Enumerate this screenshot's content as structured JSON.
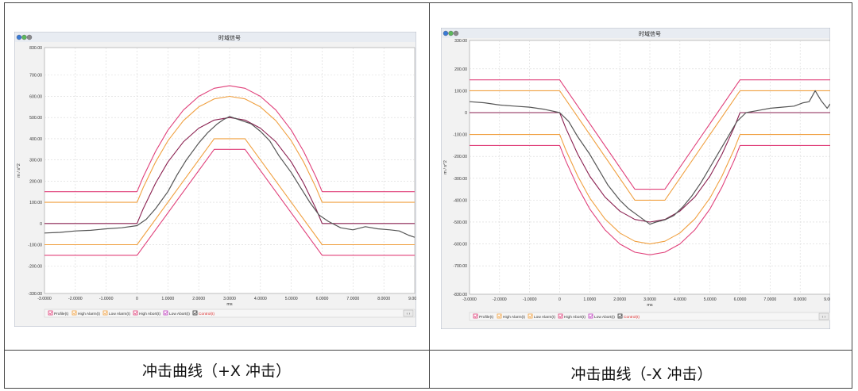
{
  "captions": {
    "left": "冲击曲线（+X 冲击）",
    "right": "冲击曲线（-X 冲击）"
  },
  "legend_items": [
    "Profile(t)",
    "High Alarm(t)",
    "Low Alarm(t)",
    "High Abort(t)",
    "Low Abort(t)",
    "Control(t)"
  ],
  "legend_colors": [
    "#e0407a",
    "#f0a040",
    "#f0a040",
    "#e0407a",
    "#c040c0",
    "#333333"
  ],
  "scroll_label": "‹ ›",
  "chart_data": [
    {
      "type": "line",
      "title": "时域信号",
      "xlabel": "ms",
      "ylabel": "m / s^2",
      "xlim": [
        -3,
        9
      ],
      "ylim": [
        -330,
        830
      ],
      "xticks": [
        "-3.0000",
        "-2.0000",
        "-1.0000",
        "0",
        "1.0000",
        "2.0000",
        "3.0000",
        "4.0000",
        "5.0000",
        "6.0000",
        "7.0000",
        "8.0000",
        "9.0000"
      ],
      "yticks": [
        "830.00",
        "700.00",
        "600.00",
        "500.00",
        "400.00",
        "300.00",
        "200.00",
        "100.00",
        "0",
        "-100.00",
        "-200.00",
        "-330.00"
      ],
      "ytick_values": [
        830,
        700,
        600,
        500,
        400,
        300,
        200,
        100,
        0,
        -100,
        -200,
        -330
      ],
      "grid": true,
      "legend_placement": "bottom",
      "series": [
        {
          "role": "high-abort",
          "color": "#e0407a",
          "x": [
            -3,
            0,
            0.2,
            0.6,
            1.0,
            1.5,
            2.0,
            2.5,
            3.0,
            3.5,
            4.0,
            4.5,
            5.0,
            5.4,
            5.8,
            6.0,
            9
          ],
          "y": [
            150,
            150,
            220,
            340,
            440,
            535,
            600,
            638,
            650,
            638,
            600,
            535,
            440,
            340,
            220,
            150,
            150
          ]
        },
        {
          "role": "high-alarm",
          "color": "#f0a040",
          "x": [
            -3,
            0,
            0.2,
            0.6,
            1.0,
            1.5,
            2.0,
            2.5,
            3.0,
            3.5,
            4.0,
            4.5,
            5.0,
            5.4,
            5.8,
            6.0,
            9
          ],
          "y": [
            100,
            100,
            170,
            290,
            390,
            485,
            550,
            588,
            600,
            588,
            550,
            485,
            390,
            290,
            170,
            100,
            100
          ]
        },
        {
          "role": "low-alarm",
          "color": "#f0a040",
          "x": [
            -3,
            0,
            2.5,
            3.5,
            6.0,
            9
          ],
          "y": [
            -100,
            -100,
            400,
            400,
            -100,
            -100
          ]
        },
        {
          "role": "low-abort",
          "color": "#e0407a",
          "x": [
            -3,
            0,
            2.5,
            3.5,
            6.0,
            9
          ],
          "y": [
            -150,
            -150,
            350,
            350,
            -150,
            -150
          ]
        },
        {
          "role": "profile",
          "color": "#8a2050",
          "x": [
            -3,
            0,
            0.2,
            0.6,
            1.0,
            1.5,
            2.0,
            2.5,
            3.0,
            3.5,
            4.0,
            4.5,
            5.0,
            5.4,
            5.8,
            6.0,
            9
          ],
          "y": [
            0,
            0,
            70,
            190,
            290,
            385,
            450,
            488,
            500,
            488,
            450,
            385,
            290,
            190,
            70,
            0,
            0
          ]
        },
        {
          "role": "control",
          "color": "#555555",
          "x": [
            -3,
            -2.5,
            -2,
            -1.5,
            -1,
            -0.5,
            0,
            0.3,
            0.6,
            1.0,
            1.3,
            1.6,
            2.0,
            2.3,
            2.6,
            2.8,
            3.0,
            3.2,
            3.4,
            3.7,
            4.0,
            4.3,
            4.6,
            5.0,
            5.3,
            5.6,
            5.9,
            6.2,
            6.6,
            7.0,
            7.4,
            7.8,
            8.2,
            8.5,
            8.8,
            9
          ],
          "y": [
            -45,
            -42,
            -35,
            -32,
            -25,
            -20,
            -10,
            20,
            70,
            150,
            230,
            300,
            380,
            430,
            470,
            490,
            505,
            495,
            485,
            470,
            435,
            390,
            320,
            240,
            170,
            100,
            40,
            10,
            -20,
            -30,
            -15,
            -25,
            -30,
            -35,
            -55,
            -65
          ]
        }
      ]
    },
    {
      "type": "line",
      "title": "时域信号",
      "xlabel": "ms",
      "ylabel": "m / s^2",
      "xlim": [
        -3,
        9
      ],
      "ylim": [
        -830,
        330
      ],
      "xticks": [
        "-3.0000",
        "-2.0000",
        "-1.0000",
        "0",
        "1.0000",
        "2.0000",
        "3.0000",
        "4.0000",
        "5.0000",
        "6.0000",
        "7.0000",
        "8.0000",
        "9.0000"
      ],
      "yticks": [
        "330.00",
        "200.00",
        "100.00",
        "0",
        "-100.00",
        "-200.00",
        "-300.00",
        "-400.00",
        "-500.00",
        "-600.00",
        "-700.00",
        "-830.00"
      ],
      "ytick_values": [
        330,
        200,
        100,
        0,
        -100,
        -200,
        -300,
        -400,
        -500,
        -600,
        -700,
        -830
      ],
      "grid": true,
      "legend_placement": "bottom",
      "series": [
        {
          "role": "high-abort",
          "color": "#e0407a",
          "x": [
            -3,
            0,
            2.5,
            3.5,
            6.0,
            9
          ],
          "y": [
            150,
            150,
            -350,
            -350,
            150,
            150
          ]
        },
        {
          "role": "high-alarm",
          "color": "#f0a040",
          "x": [
            -3,
            0,
            2.5,
            3.5,
            6.0,
            9
          ],
          "y": [
            100,
            100,
            -400,
            -400,
            100,
            100
          ]
        },
        {
          "role": "low-alarm",
          "color": "#f0a040",
          "x": [
            -3,
            0,
            0.2,
            0.6,
            1.0,
            1.5,
            2.0,
            2.5,
            3.0,
            3.5,
            4.0,
            4.5,
            5.0,
            5.4,
            5.8,
            6.0,
            9
          ],
          "y": [
            -100,
            -100,
            -170,
            -290,
            -390,
            -485,
            -550,
            -588,
            -600,
            -588,
            -550,
            -485,
            -390,
            -290,
            -170,
            -100,
            -100
          ]
        },
        {
          "role": "low-abort",
          "color": "#e0407a",
          "x": [
            -3,
            0,
            0.2,
            0.6,
            1.0,
            1.5,
            2.0,
            2.5,
            3.0,
            3.5,
            4.0,
            4.5,
            5.0,
            5.4,
            5.8,
            6.0,
            9
          ],
          "y": [
            -150,
            -150,
            -220,
            -340,
            -440,
            -535,
            -600,
            -638,
            -650,
            -638,
            -600,
            -535,
            -440,
            -340,
            -220,
            -150,
            -150
          ]
        },
        {
          "role": "profile",
          "color": "#8a2050",
          "x": [
            -3,
            0,
            0.2,
            0.6,
            1.0,
            1.5,
            2.0,
            2.5,
            3.0,
            3.5,
            4.0,
            4.5,
            5.0,
            5.4,
            5.8,
            6.0,
            9
          ],
          "y": [
            0,
            0,
            -70,
            -190,
            -290,
            -385,
            -450,
            -488,
            -500,
            -488,
            -450,
            -385,
            -290,
            -190,
            -70,
            0,
            0
          ]
        },
        {
          "role": "control",
          "color": "#555555",
          "x": [
            -3,
            -2.5,
            -2,
            -1.5,
            -1,
            -0.5,
            0,
            0.3,
            0.6,
            1.0,
            1.3,
            1.6,
            2.0,
            2.3,
            2.6,
            2.8,
            3.0,
            3.2,
            3.5,
            3.8,
            4.1,
            4.4,
            4.7,
            5.0,
            5.3,
            5.6,
            5.9,
            6.2,
            6.6,
            7.0,
            7.4,
            7.8,
            8.1,
            8.3,
            8.5,
            8.7,
            8.9,
            9
          ],
          "y": [
            50,
            45,
            35,
            30,
            25,
            15,
            0,
            -40,
            -110,
            -190,
            -260,
            -330,
            -400,
            -440,
            -470,
            -490,
            -510,
            -500,
            -490,
            -470,
            -430,
            -380,
            -320,
            -250,
            -180,
            -110,
            -40,
            0,
            10,
            20,
            25,
            30,
            45,
            50,
            100,
            55,
            20,
            40
          ]
        }
      ]
    }
  ]
}
